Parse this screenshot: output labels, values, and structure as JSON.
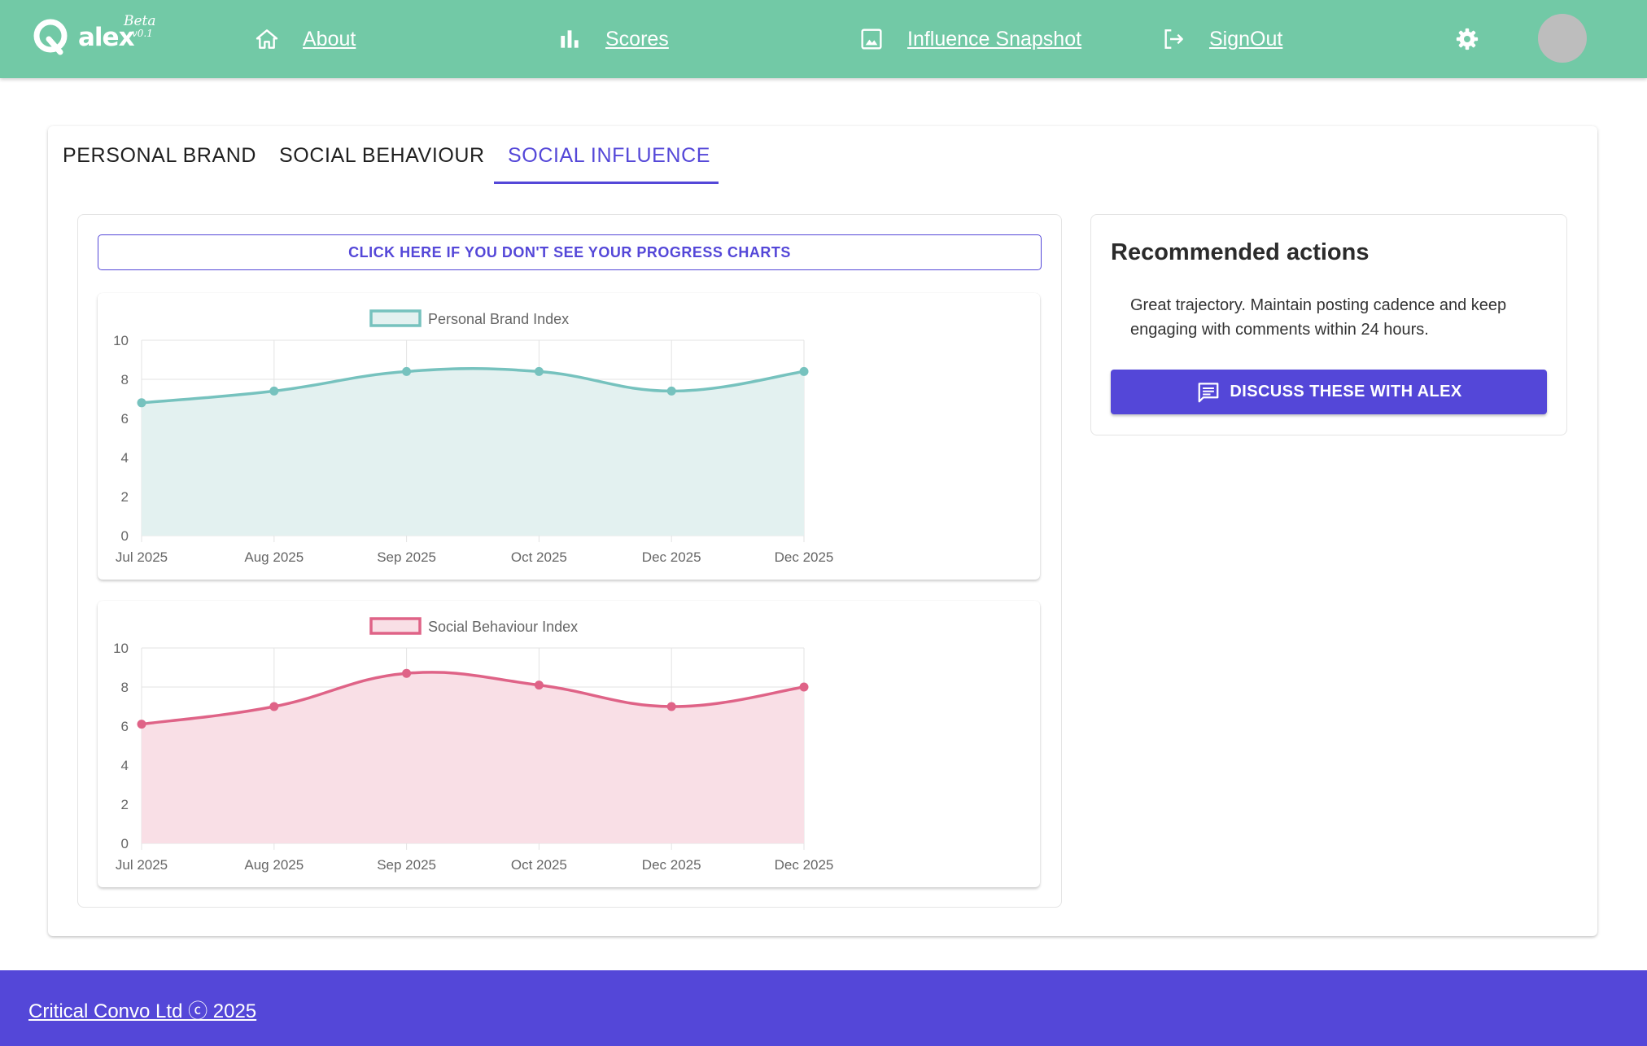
{
  "header": {
    "logo": {
      "name": "alex",
      "badge": "Beta",
      "version": "v0.1"
    },
    "nav": [
      {
        "label": "About",
        "icon": "home-icon"
      },
      {
        "label": "Scores",
        "icon": "bar-chart-icon"
      },
      {
        "label": "Influence Snapshot",
        "icon": "image-icon"
      },
      {
        "label": "SignOut",
        "icon": "logout-icon"
      }
    ],
    "settings_icon": "gear-icon",
    "avatar_icon": "avatar"
  },
  "tabs": [
    {
      "label": "Personal Brand",
      "active": false
    },
    {
      "label": "Social Behaviour",
      "active": false
    },
    {
      "label": "Social Influence",
      "active": true
    }
  ],
  "charts_panel": {
    "progress_button_label": "Click here if you don't see your progress charts"
  },
  "chart_data": [
    {
      "type": "area",
      "x": [
        "Jul 2025",
        "Aug 2025",
        "Sep 2025",
        "Oct 2025",
        "Dec 2025",
        "Dec 2025"
      ],
      "series": [
        {
          "name": "Personal Brand Index",
          "values": [
            6.8,
            7.4,
            8.4,
            8.4,
            7.4,
            8.4
          ],
          "color": "#76c2be",
          "fill": "#e3f1f0"
        }
      ],
      "ylim": [
        0,
        10
      ],
      "yticks": [
        "0",
        "2",
        "4",
        "6",
        "8",
        "10"
      ],
      "grid": true,
      "legend": "top"
    },
    {
      "type": "area",
      "x": [
        "Jul 2025",
        "Aug 2025",
        "Sep 2025",
        "Oct 2025",
        "Dec 2025",
        "Dec 2025"
      ],
      "series": [
        {
          "name": "Social Behaviour Index",
          "values": [
            6.1,
            7.0,
            8.7,
            8.1,
            7.0,
            8.0
          ],
          "color": "#df6387",
          "fill": "#f9dfe6"
        }
      ],
      "ylim": [
        0,
        10
      ],
      "yticks": [
        "0",
        "2",
        "4",
        "6",
        "8",
        "10"
      ],
      "grid": true,
      "legend": "top"
    }
  ],
  "recommended": {
    "title": "Recommended actions",
    "text": "Great trajectory. Maintain posting cadence and keep engaging with comments within 24 hours.",
    "button_label": "Discuss these with Alex",
    "button_icon": "chat-icon"
  },
  "footer": {
    "text": "Critical Convo Ltd ⓒ 2025"
  },
  "colors": {
    "header": "#72c9a6",
    "accent": "#5447d8"
  }
}
